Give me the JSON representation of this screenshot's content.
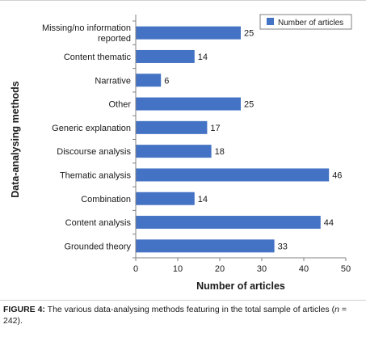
{
  "caption": {
    "label": "FIGURE 4:",
    "text_before_n": " The various data-analysing methods featuring in the total sample of articles (",
    "n_symbol": "n",
    "text_after_n": " = 242)."
  },
  "chart_data": {
    "type": "bar",
    "orientation": "horizontal",
    "categories": [
      "Missing/no information reported",
      "Content thematic",
      "Narrative",
      "Other",
      "Generic explanation",
      "Discourse analysis",
      "Thematic analysis",
      "Combination",
      "Content analysis",
      "Grounded theory"
    ],
    "category_lines": [
      [
        "Missing/no information",
        "reported"
      ],
      [
        "Content thematic"
      ],
      [
        "Narrative"
      ],
      [
        "Other"
      ],
      [
        "Generic explanation"
      ],
      [
        "Discourse analysis"
      ],
      [
        "Thematic analysis"
      ],
      [
        "Combination"
      ],
      [
        "Content analysis"
      ],
      [
        "Grounded theory"
      ]
    ],
    "series": [
      {
        "name": "Number of articles",
        "values": [
          25,
          14,
          6,
          25,
          17,
          18,
          46,
          14,
          44,
          33
        ]
      }
    ],
    "value_labels": [
      "25",
      "14",
      "6",
      "25",
      "17",
      "18",
      "46",
      "14",
      "44",
      "33"
    ],
    "xlabel": "Number of articles",
    "ylabel": "Data-analysing methods",
    "xlim": [
      0,
      50
    ],
    "xticks": [
      "0",
      "10",
      "20",
      "30",
      "40",
      "50"
    ],
    "grid": false,
    "legend_position": "top-right",
    "bar_color": "#4472c4"
  }
}
